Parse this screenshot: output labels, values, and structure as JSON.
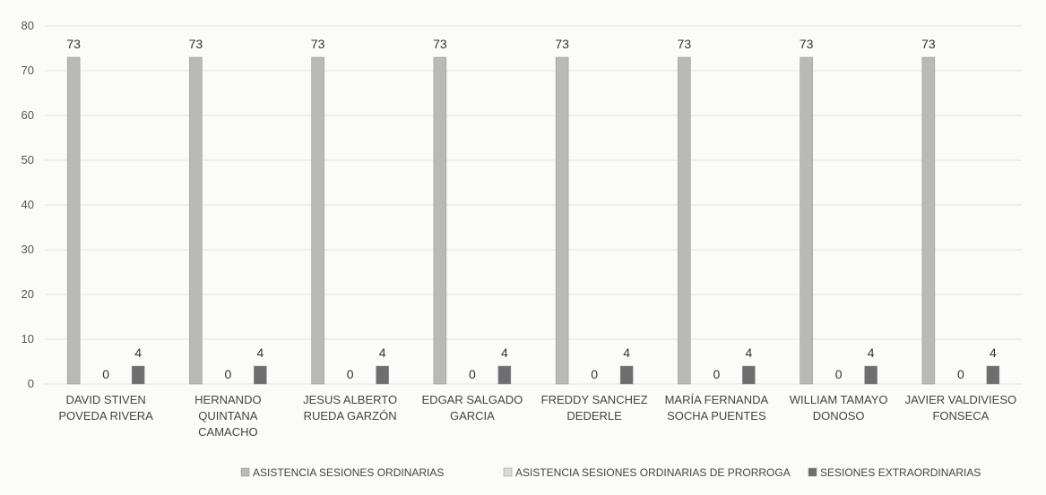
{
  "chart_data": {
    "type": "bar",
    "categories": [
      [
        "DAVID STIVEN",
        "POVEDA RIVERA"
      ],
      [
        "HERNANDO",
        "QUINTANA",
        "CAMACHO"
      ],
      [
        "JESUS ALBERTO",
        "RUEDA GARZÓN"
      ],
      [
        "EDGAR SALGADO",
        "GARCIA"
      ],
      [
        "FREDDY SANCHEZ",
        "DEDERLE"
      ],
      [
        "MARÍA FERNANDA",
        "SOCHA PUENTES"
      ],
      [
        "WILLIAM TAMAYO",
        "DONOSO"
      ],
      [
        "JAVIER VALDIVIESO",
        "FONSECA"
      ]
    ],
    "series": [
      {
        "name": "ASISTENCIA SESIONES ORDINARIAS",
        "values": [
          73,
          73,
          73,
          73,
          73,
          73,
          73,
          73
        ],
        "color": "#b9b9b7"
      },
      {
        "name": "ASISTENCIA SESIONES ORDINARIAS DE PRORROGA",
        "values": [
          0,
          0,
          0,
          0,
          0,
          0,
          0,
          0
        ],
        "color": "#d9d9d6"
      },
      {
        "name": "SESIONES EXTRAORDINARIAS",
        "values": [
          4,
          4,
          4,
          4,
          4,
          4,
          4,
          4
        ],
        "color": "#6e6e70"
      }
    ],
    "ylim": [
      0,
      80
    ],
    "yticks": [
      0,
      10,
      20,
      30,
      40,
      50,
      60,
      70,
      80
    ],
    "grid": true,
    "legend": "bottom",
    "data_labels": true
  }
}
